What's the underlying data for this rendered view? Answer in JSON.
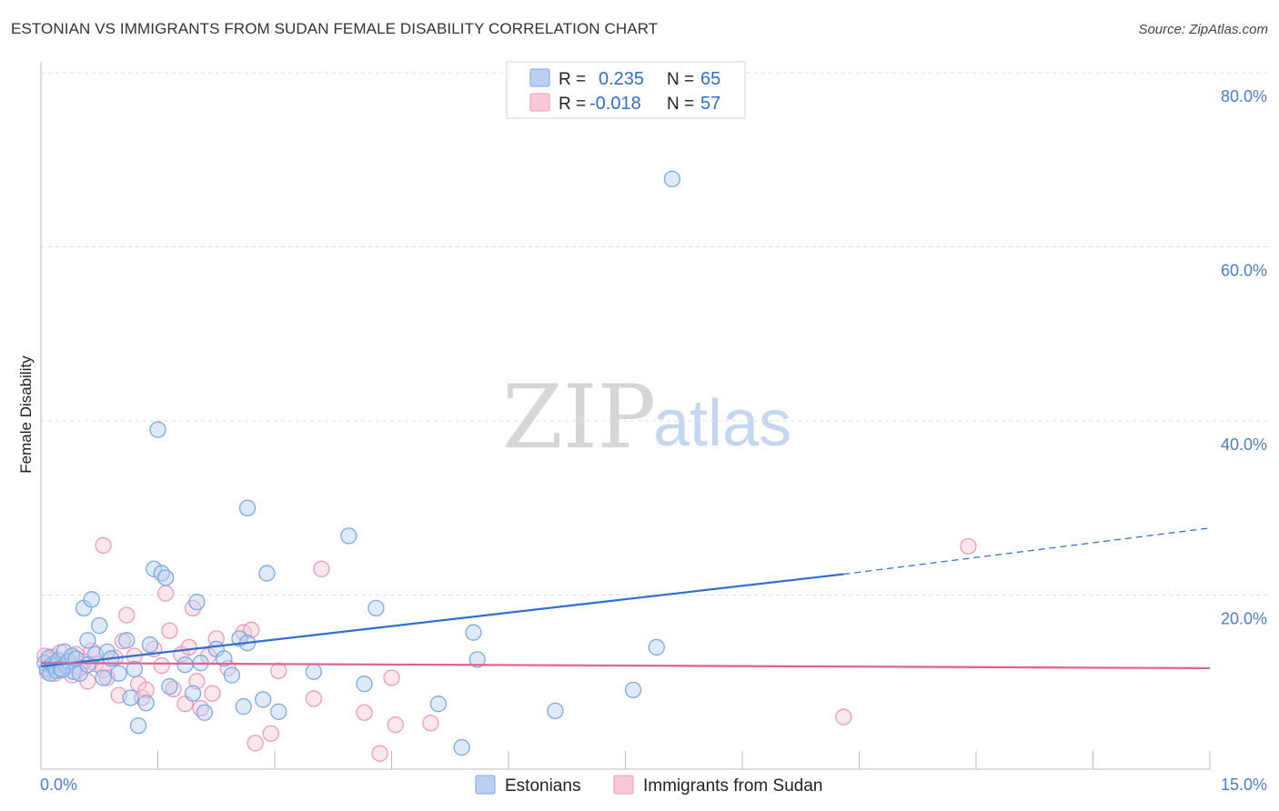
{
  "header": {
    "title": "ESTONIAN VS IMMIGRANTS FROM SUDAN FEMALE DISABILITY CORRELATION CHART",
    "source": "Source: ZipAtlas.com"
  },
  "watermark": {
    "zip": "ZIP",
    "atlas": "atlas"
  },
  "chart_data": {
    "type": "scatter",
    "title": "ESTONIAN VS IMMIGRANTS FROM SUDAN FEMALE DISABILITY CORRELATION CHART",
    "xlabel": "",
    "ylabel": "Female Disability",
    "xlim": [
      0,
      15
    ],
    "ylim": [
      0,
      80
    ],
    "x_tick_labels": {
      "min": "0.0%",
      "max": "15.0%"
    },
    "y_ticks": [
      {
        "value": 80,
        "label": "80.0%"
      },
      {
        "value": 60,
        "label": "60.0%"
      },
      {
        "value": 40,
        "label": "40.0%"
      },
      {
        "value": 20,
        "label": "20.0%"
      }
    ],
    "grid": true,
    "legend_position": "bottom-center",
    "stats": [
      {
        "r_label": "R =",
        "r_value": "0.235",
        "n_label": "N =",
        "n_value": "65"
      },
      {
        "r_label": "R =",
        "r_value": "-0.018",
        "n_label": "N =",
        "n_value": "57"
      }
    ],
    "series": [
      {
        "name": "Estonians",
        "color": "#7aa9e6",
        "fill": "#b9d0f2",
        "trend_color": "#2f6fcf",
        "trend": {
          "x0": 0.0,
          "y0": 11.8,
          "x1": 10.3,
          "y1": 22.4,
          "dash_to_x": 15.0,
          "dash_to_y": 27.7
        },
        "points": [
          [
            0.05,
            12.2
          ],
          [
            0.08,
            11.5
          ],
          [
            0.1,
            12.8
          ],
          [
            0.12,
            11.0
          ],
          [
            0.15,
            12.0
          ],
          [
            0.18,
            11.8
          ],
          [
            0.2,
            11.3
          ],
          [
            0.22,
            12.5
          ],
          [
            0.25,
            11.6
          ],
          [
            0.3,
            13.5
          ],
          [
            0.32,
            11.9
          ],
          [
            0.35,
            12.4
          ],
          [
            0.4,
            13.0
          ],
          [
            0.42,
            11.2
          ],
          [
            0.45,
            12.7
          ],
          [
            0.5,
            11.0
          ],
          [
            0.55,
            18.5
          ],
          [
            0.6,
            14.8
          ],
          [
            0.65,
            19.5
          ],
          [
            0.7,
            13.2
          ],
          [
            0.75,
            16.5
          ],
          [
            0.8,
            10.5
          ],
          [
            0.85,
            13.5
          ],
          [
            0.9,
            12.7
          ],
          [
            1.0,
            11.0
          ],
          [
            1.1,
            14.8
          ],
          [
            1.15,
            8.2
          ],
          [
            1.2,
            11.5
          ],
          [
            1.25,
            5.0
          ],
          [
            1.35,
            7.6
          ],
          [
            1.4,
            14.3
          ],
          [
            1.45,
            23.0
          ],
          [
            1.5,
            39.0
          ],
          [
            1.55,
            22.5
          ],
          [
            1.6,
            22.0
          ],
          [
            1.65,
            9.5
          ],
          [
            1.85,
            12.0
          ],
          [
            1.95,
            8.7
          ],
          [
            2.0,
            19.2
          ],
          [
            2.05,
            12.2
          ],
          [
            2.1,
            6.5
          ],
          [
            2.25,
            13.8
          ],
          [
            2.35,
            12.7
          ],
          [
            2.45,
            10.8
          ],
          [
            2.55,
            15.0
          ],
          [
            2.6,
            7.2
          ],
          [
            2.65,
            14.5
          ],
          [
            2.65,
            30.0
          ],
          [
            2.85,
            8.0
          ],
          [
            2.9,
            22.5
          ],
          [
            3.05,
            6.6
          ],
          [
            3.5,
            11.2
          ],
          [
            3.95,
            26.8
          ],
          [
            4.15,
            9.8
          ],
          [
            4.3,
            18.5
          ],
          [
            5.1,
            7.5
          ],
          [
            5.4,
            2.5
          ],
          [
            5.55,
            15.7
          ],
          [
            5.6,
            12.6
          ],
          [
            6.6,
            6.7
          ],
          [
            7.6,
            9.1
          ],
          [
            7.9,
            14.0
          ],
          [
            8.1,
            67.8
          ],
          [
            0.27,
            11.4
          ],
          [
            0.6,
            12.0
          ]
        ]
      },
      {
        "name": "Immigrants from Sudan",
        "color": "#f09ab7",
        "fill": "#f8c9d8",
        "trend_color": "#e0608e",
        "trend": {
          "x0": 0.0,
          "y0": 12.2,
          "x1": 15.0,
          "y1": 11.6
        },
        "points": [
          [
            0.05,
            13.0
          ],
          [
            0.08,
            11.2
          ],
          [
            0.1,
            12.5
          ],
          [
            0.12,
            11.8
          ],
          [
            0.15,
            12.9
          ],
          [
            0.18,
            11.0
          ],
          [
            0.2,
            12.2
          ],
          [
            0.25,
            13.4
          ],
          [
            0.3,
            11.5
          ],
          [
            0.35,
            12.0
          ],
          [
            0.4,
            10.8
          ],
          [
            0.45,
            13.2
          ],
          [
            0.5,
            11.7
          ],
          [
            0.55,
            12.4
          ],
          [
            0.6,
            10.1
          ],
          [
            0.65,
            13.6
          ],
          [
            0.7,
            12.1
          ],
          [
            0.8,
            11.4
          ],
          [
            0.85,
            10.5
          ],
          [
            0.8,
            25.7
          ],
          [
            0.95,
            12.8
          ],
          [
            1.0,
            8.5
          ],
          [
            1.05,
            14.7
          ],
          [
            1.1,
            17.7
          ],
          [
            1.2,
            13.0
          ],
          [
            1.25,
            9.8
          ],
          [
            1.3,
            8.2
          ],
          [
            1.35,
            9.1
          ],
          [
            1.45,
            13.8
          ],
          [
            1.55,
            11.9
          ],
          [
            1.6,
            20.2
          ],
          [
            1.65,
            15.9
          ],
          [
            1.7,
            9.2
          ],
          [
            1.8,
            13.2
          ],
          [
            1.85,
            7.5
          ],
          [
            1.9,
            14.0
          ],
          [
            1.95,
            18.5
          ],
          [
            2.0,
            10.1
          ],
          [
            2.05,
            7.0
          ],
          [
            2.15,
            13.0
          ],
          [
            2.2,
            8.7
          ],
          [
            2.25,
            15.0
          ],
          [
            2.4,
            11.6
          ],
          [
            2.6,
            15.7
          ],
          [
            2.7,
            16.0
          ],
          [
            2.75,
            3.0
          ],
          [
            2.95,
            4.1
          ],
          [
            3.05,
            11.3
          ],
          [
            3.5,
            8.1
          ],
          [
            3.6,
            23.0
          ],
          [
            4.15,
            6.5
          ],
          [
            4.35,
            1.8
          ],
          [
            4.5,
            10.5
          ],
          [
            4.55,
            5.1
          ],
          [
            5.0,
            5.3
          ],
          [
            10.3,
            6.0
          ],
          [
            11.9,
            25.6
          ]
        ]
      }
    ]
  }
}
